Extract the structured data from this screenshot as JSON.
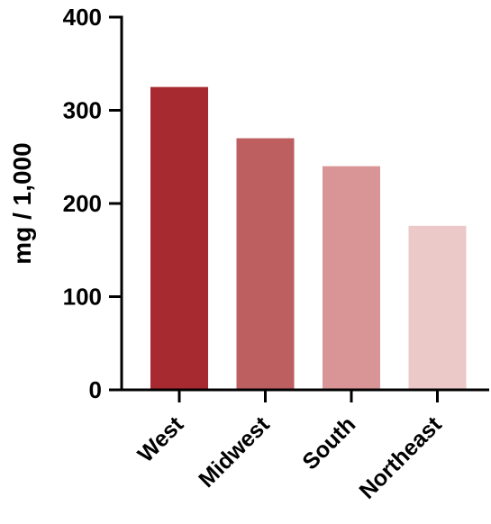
{
  "chart_data": {
    "type": "bar",
    "title": "",
    "xlabel": "",
    "ylabel": "mg / 1,000",
    "categories": [
      "West",
      "Midwest",
      "South",
      "Northeast"
    ],
    "values": [
      325,
      270,
      240,
      176
    ],
    "colors": [
      "#a82a31",
      "#bd5e60",
      "#d99596",
      "#ebc9c8"
    ],
    "ylim": [
      0,
      400
    ],
    "yticks": [
      "0",
      "100",
      "200",
      "300",
      "400"
    ],
    "grid": false,
    "legend": "none"
  }
}
